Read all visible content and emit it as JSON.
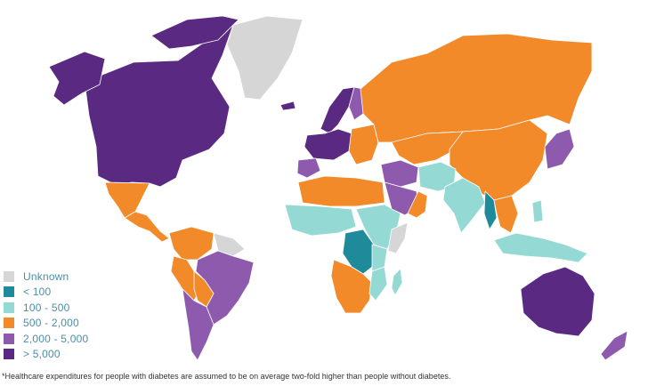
{
  "colors": {
    "unknown": "#d6d6d6",
    "lt100": "#1f8a9a",
    "r100_500": "#95d9d5",
    "r500_2000": "#f28a2a",
    "r2000_5000": "#8e5aad",
    "gt5000": "#5a2a83"
  },
  "legend": {
    "items": [
      {
        "key": "unknown",
        "label": "Unknown"
      },
      {
        "key": "lt100",
        "label": "< 100"
      },
      {
        "key": "r100_500",
        "label": "100 - 500"
      },
      {
        "key": "r500_2000",
        "label": "500 - 2,000"
      },
      {
        "key": "r2000_5000",
        "label": "2,000 - 5,000"
      },
      {
        "key": "gt5000",
        "label": "> 5,000"
      }
    ]
  },
  "footnote": "*Healthcare expenditures for people with diabetes are assumed to be on average two-fold higher than people without diabetes.",
  "regions": [
    {
      "name": "canada-usa",
      "cat": "gt5000"
    },
    {
      "name": "alaska",
      "cat": "gt5000"
    },
    {
      "name": "arctic-islands",
      "cat": "gt5000"
    },
    {
      "name": "greenland",
      "cat": "unknown"
    },
    {
      "name": "mexico",
      "cat": "r500_2000"
    },
    {
      "name": "central-america",
      "cat": "r500_2000"
    },
    {
      "name": "colombia-venezuela",
      "cat": "r500_2000"
    },
    {
      "name": "peru",
      "cat": "r500_2000"
    },
    {
      "name": "guianas",
      "cat": "unknown"
    },
    {
      "name": "brazil",
      "cat": "r2000_5000"
    },
    {
      "name": "bolivia",
      "cat": "r500_2000"
    },
    {
      "name": "chile-argentina",
      "cat": "r2000_5000"
    },
    {
      "name": "iceland",
      "cat": "gt5000"
    },
    {
      "name": "scandinavia",
      "cat": "gt5000"
    },
    {
      "name": "finland",
      "cat": "r2000_5000"
    },
    {
      "name": "western-europe",
      "cat": "gt5000"
    },
    {
      "name": "iberia",
      "cat": "r2000_5000"
    },
    {
      "name": "eastern-europe",
      "cat": "r500_2000"
    },
    {
      "name": "russia",
      "cat": "r500_2000"
    },
    {
      "name": "kazakhstan-central-asia",
      "cat": "r500_2000"
    },
    {
      "name": "mongolia-china",
      "cat": "r500_2000"
    },
    {
      "name": "north-africa",
      "cat": "r500_2000"
    },
    {
      "name": "west-africa",
      "cat": "r100_500"
    },
    {
      "name": "sahel-unknown",
      "cat": "unknown"
    },
    {
      "name": "east-africa",
      "cat": "r100_500"
    },
    {
      "name": "somalia",
      "cat": "unknown"
    },
    {
      "name": "congo",
      "cat": "lt100"
    },
    {
      "name": "central-africa",
      "cat": "r100_500"
    },
    {
      "name": "angola-south",
      "cat": "r500_2000"
    },
    {
      "name": "mozambique",
      "cat": "r100_500"
    },
    {
      "name": "madagascar",
      "cat": "r100_500"
    },
    {
      "name": "middle-east",
      "cat": "r2000_5000"
    },
    {
      "name": "arabia-gulf",
      "cat": "r2000_5000"
    },
    {
      "name": "yemen-oman",
      "cat": "r500_2000"
    },
    {
      "name": "iran-afghanistan",
      "cat": "r100_500"
    },
    {
      "name": "india",
      "cat": "r100_500"
    },
    {
      "name": "myanmar",
      "cat": "lt100"
    },
    {
      "name": "southeast-asia",
      "cat": "r500_2000"
    },
    {
      "name": "indonesia",
      "cat": "r100_500"
    },
    {
      "name": "philippines",
      "cat": "r100_500"
    },
    {
      "name": "korea-japan",
      "cat": "r2000_5000"
    },
    {
      "name": "australia",
      "cat": "gt5000"
    },
    {
      "name": "new-zealand",
      "cat": "r2000_5000"
    }
  ]
}
